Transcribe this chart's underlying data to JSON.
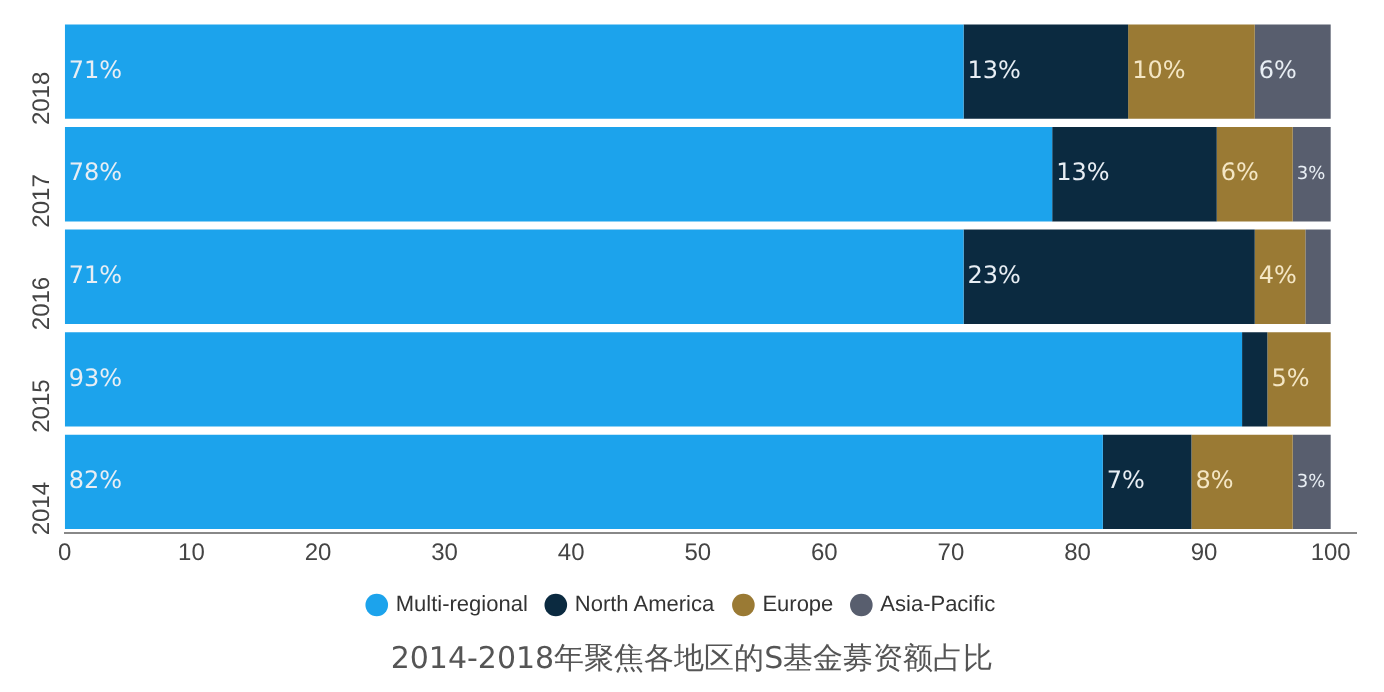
{
  "chart_data": {
    "type": "bar",
    "orientation": "horizontal",
    "stacked": true,
    "title": "2014-2018年聚焦各地区的S基金募资额占比",
    "categories": [
      "2018",
      "2017",
      "2016",
      "2015",
      "2014"
    ],
    "series": [
      {
        "name": "Multi-regional",
        "color": "#1ca3ec",
        "values": [
          71,
          78,
          71,
          93,
          82
        ],
        "value_labels": [
          "71%",
          "78%",
          "71%",
          "93%",
          "82%"
        ]
      },
      {
        "name": "North America",
        "color": "#0b2a40",
        "values": [
          13,
          13,
          23,
          2,
          7
        ],
        "value_labels": [
          "13%",
          "13%",
          "23%",
          null,
          "7%"
        ]
      },
      {
        "name": "Europe",
        "color": "#9a7a34",
        "values": [
          10,
          6,
          4,
          5,
          8
        ],
        "value_labels": [
          "10%",
          "6%",
          "4%",
          "5%",
          "8%"
        ]
      },
      {
        "name": "Asia-Pacific",
        "color": "#585e6e",
        "values": [
          6,
          3,
          2,
          0,
          3
        ],
        "value_labels": [
          "6%",
          "3%",
          null,
          null,
          "3%"
        ]
      }
    ],
    "xlim": [
      0,
      102
    ],
    "xticks": [
      0,
      10,
      20,
      30,
      40,
      50,
      60,
      70,
      80,
      90,
      100
    ],
    "grid": false,
    "legend": "bottom"
  }
}
